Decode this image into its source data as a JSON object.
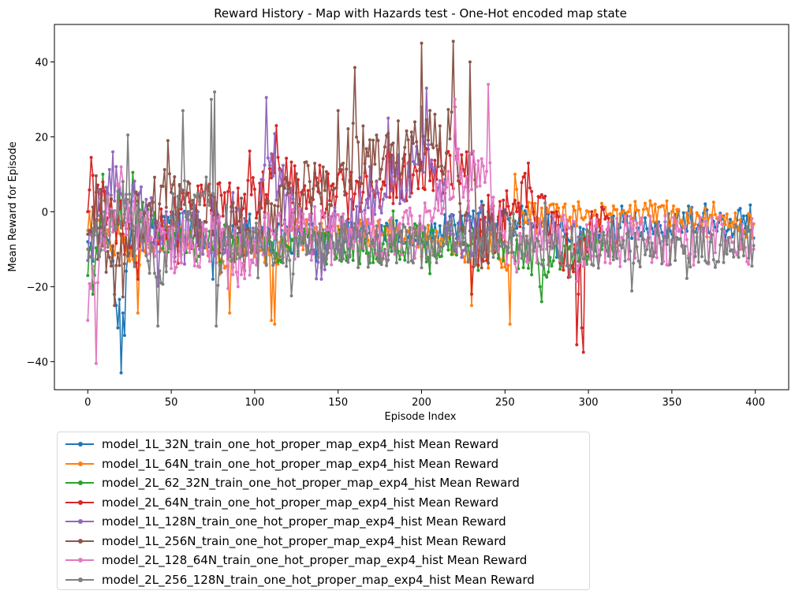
{
  "chart_data": {
    "type": "line",
    "title": "Reward History - Map with Hazards test - One-Hot encoded map state",
    "xlabel": "Episode Index",
    "ylabel": "Mean Reward for Episode",
    "xlim": [
      -20,
      420
    ],
    "ylim": [
      -47.5,
      50
    ],
    "xticks": [
      0,
      50,
      100,
      150,
      200,
      250,
      300,
      350,
      400
    ],
    "yticks": [
      -40,
      -20,
      0,
      20,
      40
    ],
    "grid": false,
    "legend_position": "below",
    "series": [
      {
        "name": "model_1L_32N_train_one_hot_proper_map_exp4_hist Mean Reward",
        "color": "#1f77b4",
        "length": 400,
        "points": [
          [
            0,
            -8
          ],
          [
            8,
            -4
          ],
          [
            14,
            -10
          ],
          [
            17,
            -25
          ],
          [
            18,
            -31
          ],
          [
            20,
            -43
          ],
          [
            21,
            -27
          ],
          [
            22,
            -33
          ],
          [
            24,
            -12
          ],
          [
            30,
            -6
          ],
          [
            40,
            -2
          ],
          [
            60,
            0
          ],
          [
            75,
            -18
          ],
          [
            80,
            -8
          ],
          [
            100,
            -9
          ],
          [
            150,
            -8
          ],
          [
            200,
            -5
          ],
          [
            240,
            0
          ],
          [
            260,
            1.5
          ],
          [
            280,
            -3
          ],
          [
            300,
            -12
          ],
          [
            320,
            1.5
          ],
          [
            340,
            -3
          ],
          [
            360,
            1.5
          ],
          [
            380,
            -2
          ],
          [
            397,
            1.8
          ],
          [
            399,
            -7
          ]
        ],
        "noise": 4.0,
        "baseline": -6
      },
      {
        "name": "model_1L_64N_train_one_hot_proper_map_exp4_hist Mean Reward",
        "color": "#ff7f0e",
        "length": 400,
        "points": [
          [
            0,
            -5
          ],
          [
            30,
            -27
          ],
          [
            50,
            -10
          ],
          [
            85,
            -27
          ],
          [
            100,
            -12
          ],
          [
            110,
            -29
          ],
          [
            112,
            -30
          ],
          [
            120,
            -10
          ],
          [
            200,
            -12
          ],
          [
            230,
            -25
          ],
          [
            240,
            -15
          ],
          [
            253,
            -30
          ],
          [
            256,
            10
          ],
          [
            260,
            0
          ],
          [
            300,
            0
          ],
          [
            350,
            0
          ],
          [
            398,
            -7
          ]
        ],
        "noise": 3.5,
        "baseline": -1
      },
      {
        "name": "model_2L_62_32N_train_one_hot_proper_map_exp4_hist Mean Reward",
        "color": "#2ca02c",
        "length": 316,
        "points": [
          [
            0,
            -17
          ],
          [
            3,
            -22
          ],
          [
            9,
            10
          ],
          [
            27,
            10.5
          ],
          [
            50,
            -8
          ],
          [
            100,
            -10
          ],
          [
            150,
            -10
          ],
          [
            200,
            -8
          ],
          [
            250,
            -8
          ],
          [
            271,
            -20
          ],
          [
            272,
            -24
          ],
          [
            290,
            -12
          ],
          [
            315,
            -12
          ]
        ],
        "noise": 5.0,
        "baseline": -9
      },
      {
        "name": "model_2L_64N_train_one_hot_proper_map_exp4_hist Mean Reward",
        "color": "#d62728",
        "length": 318,
        "points": [
          [
            0,
            0
          ],
          [
            2,
            14.5
          ],
          [
            30,
            -18
          ],
          [
            60,
            5
          ],
          [
            100,
            6
          ],
          [
            113,
            23
          ],
          [
            150,
            10
          ],
          [
            180,
            20
          ],
          [
            220,
            28
          ],
          [
            227,
            16
          ],
          [
            230,
            -22
          ],
          [
            245,
            -8
          ],
          [
            264,
            13
          ],
          [
            280,
            -8
          ],
          [
            293,
            -35.5
          ],
          [
            294,
            -22
          ],
          [
            296,
            -31
          ],
          [
            297,
            -37.5
          ],
          [
            300,
            -8
          ],
          [
            317,
            -8
          ]
        ],
        "noise": 7.0,
        "baseline": -1
      },
      {
        "name": "model_1L_128N_train_one_hot_proper_map_exp4_hist Mean Reward",
        "color": "#9467bd",
        "length": 245,
        "points": [
          [
            0,
            -13
          ],
          [
            15,
            16
          ],
          [
            50,
            -10
          ],
          [
            80,
            -6
          ],
          [
            100,
            -10
          ],
          [
            107,
            30.5
          ],
          [
            140,
            -18
          ],
          [
            180,
            25
          ],
          [
            200,
            28
          ],
          [
            203,
            33
          ],
          [
            220,
            -10
          ],
          [
            244,
            -10
          ]
        ],
        "noise": 8.0,
        "baseline": -3
      },
      {
        "name": "model_1L_256N_train_one_hot_proper_map_exp4_hist Mean Reward",
        "color": "#8c564b",
        "length": 245,
        "points": [
          [
            0,
            -6
          ],
          [
            16,
            -25
          ],
          [
            48,
            19
          ],
          [
            60,
            8
          ],
          [
            80,
            -7
          ],
          [
            100,
            -8
          ],
          [
            150,
            27
          ],
          [
            160,
            38.5
          ],
          [
            200,
            45
          ],
          [
            219,
            45.5
          ],
          [
            225,
            -5
          ],
          [
            229,
            40
          ],
          [
            235,
            -10
          ],
          [
            244,
            -9
          ]
        ],
        "noise": 9.0,
        "baseline": -3
      },
      {
        "name": "model_2L_128_64N_train_one_hot_proper_map_exp4_hist Mean Reward",
        "color": "#e377c2",
        "length": 400,
        "points": [
          [
            0,
            -29
          ],
          [
            5,
            -40.5
          ],
          [
            8,
            -5
          ],
          [
            20,
            12
          ],
          [
            40,
            -12
          ],
          [
            80,
            -10
          ],
          [
            90,
            -20
          ],
          [
            110,
            -5
          ],
          [
            160,
            -8
          ],
          [
            200,
            -5
          ],
          [
            220,
            30
          ],
          [
            240,
            34
          ],
          [
            245,
            -10
          ],
          [
            300,
            -10
          ],
          [
            399,
            -10
          ]
        ],
        "noise": 7.0,
        "baseline": -6
      },
      {
        "name": "model_2L_256_128N_train_one_hot_proper_map_exp4_hist Mean Reward",
        "color": "#7f7f7f",
        "length": 400,
        "points": [
          [
            0,
            -10
          ],
          [
            10,
            0
          ],
          [
            24,
            20.5
          ],
          [
            42,
            -30.5
          ],
          [
            57,
            27
          ],
          [
            66,
            5
          ],
          [
            74,
            30
          ],
          [
            76,
            32
          ],
          [
            77,
            -30.5
          ],
          [
            82,
            -9
          ],
          [
            150,
            -9
          ],
          [
            250,
            -9
          ],
          [
            399,
            -9
          ]
        ],
        "noise": 6.0,
        "baseline": -9
      }
    ]
  }
}
